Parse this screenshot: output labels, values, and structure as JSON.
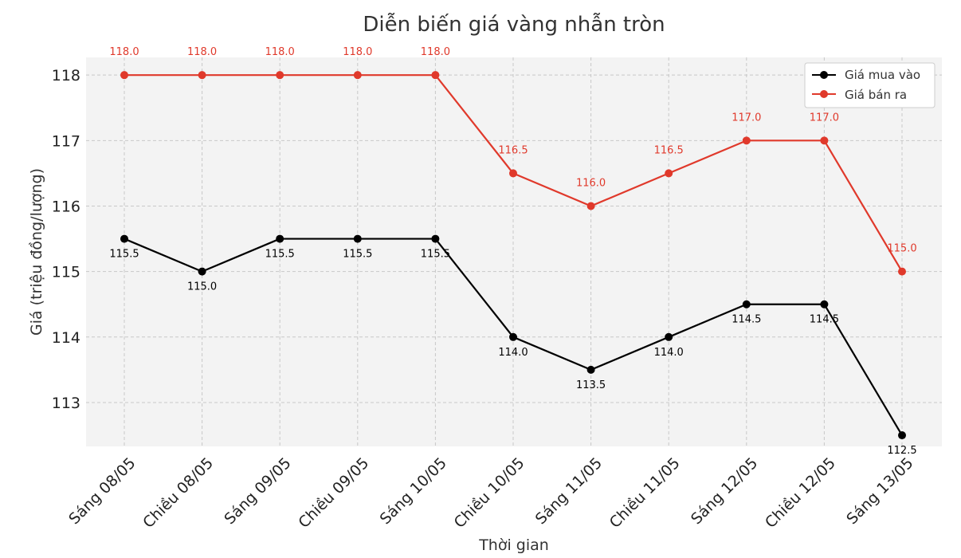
{
  "chart_data": {
    "type": "line",
    "title": "Diễn biến giá vàng nhẫn tròn",
    "xlabel": "Thời gian",
    "ylabel": "Giá (triệu đồng/lượng)",
    "categories": [
      "Sáng 08/05",
      "Chiều 08/05",
      "Sáng 09/05",
      "Chiều 09/05",
      "Sáng 10/05",
      "Chiều 10/05",
      "Sáng 11/05",
      "Chiều 11/05",
      "Sáng 12/05",
      "Chiều 12/05",
      "Sáng 13/05"
    ],
    "yticks": [
      113,
      114,
      115,
      116,
      117,
      118
    ],
    "ylim": [
      112.33,
      118.27
    ],
    "grid": true,
    "legend_position": "top-right",
    "series": [
      {
        "name": "Giá mua vào",
        "color": "#000000",
        "values": [
          115.5,
          115.0,
          115.5,
          115.5,
          115.5,
          114.0,
          113.5,
          114.0,
          114.5,
          114.5,
          112.5
        ],
        "labels": [
          "115.5",
          "115.0",
          "115.5",
          "115.5",
          "115.5",
          "114.0",
          "113.5",
          "114.0",
          "114.5",
          "114.5",
          "112.5"
        ],
        "label_color": "#000000",
        "label_position": "below"
      },
      {
        "name": "Giá bán ra",
        "color": "#e0392b",
        "values": [
          118.0,
          118.0,
          118.0,
          118.0,
          118.0,
          116.5,
          116.0,
          116.5,
          117.0,
          117.0,
          115.0
        ],
        "labels": [
          "118.0",
          "118.0",
          "118.0",
          "118.0",
          "118.0",
          "116.5",
          "116.0",
          "116.5",
          "117.0",
          "117.0",
          "115.0"
        ],
        "label_color": "#e0392b",
        "label_position": "above"
      }
    ]
  }
}
